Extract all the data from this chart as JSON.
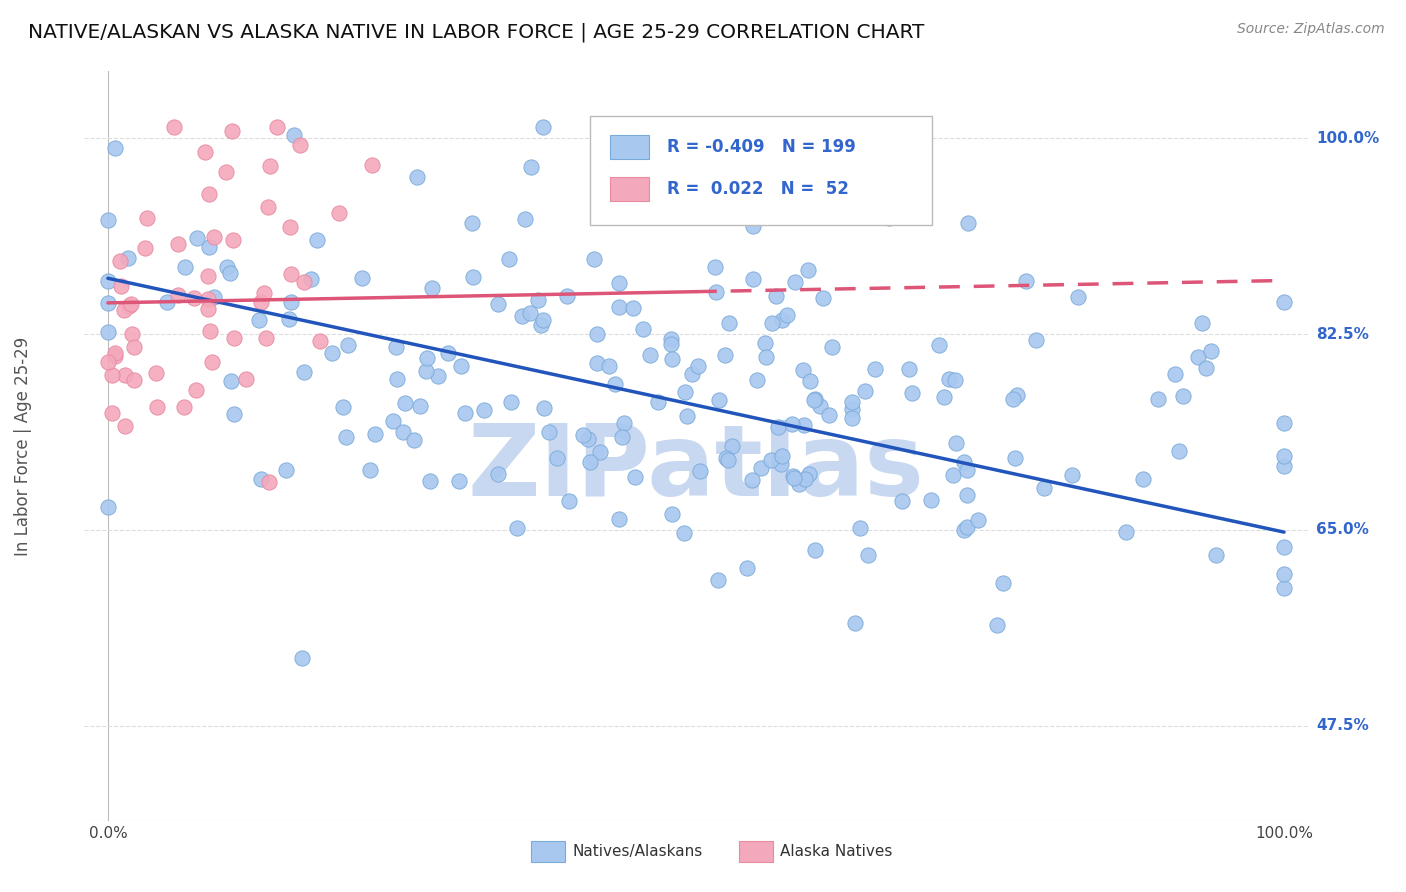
{
  "title": "NATIVE/ALASKAN VS ALASKA NATIVE IN LABOR FORCE | AGE 25-29 CORRELATION CHART",
  "source_text": "Source: ZipAtlas.com",
  "ylabel_text": "In Labor Force | Age 25-29",
  "y_tick_labels": [
    "47.5%",
    "65.0%",
    "82.5%",
    "100.0%"
  ],
  "y_tick_values": [
    0.475,
    0.65,
    0.825,
    1.0
  ],
  "xlim": [
    -0.02,
    1.02
  ],
  "ylim": [
    0.39,
    1.06
  ],
  "blue_R": -0.409,
  "blue_N": 199,
  "pink_R": 0.022,
  "pink_N": 52,
  "blue_color": "#a8c8f0",
  "pink_color": "#f4a8bc",
  "blue_edge_color": "#7aaad8",
  "pink_edge_color": "#e88aa0",
  "blue_line_color": "#2255bb",
  "pink_line_color": "#dd5577",
  "grid_color": "#dddddd",
  "background_color": "#ffffff",
  "watermark_text": "ZIPatlas",
  "watermark_color": "#c8d8f0",
  "legend_label_blue": "Natives/Alaskans",
  "legend_label_pink": "Alaska Natives",
  "marker_size": 120,
  "blue_trend_start_y": 0.875,
  "blue_trend_end_y": 0.648,
  "pink_trend_start_y": 0.853,
  "pink_trend_end_y": 0.873,
  "seed": 42,
  "blue_n": 199,
  "pink_n": 52
}
